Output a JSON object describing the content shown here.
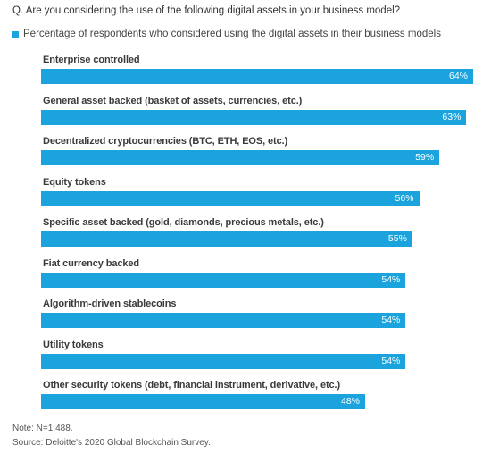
{
  "question": "Q. Are you considering the use of the following digital assets in your business model?",
  "legend": {
    "label": "Percentage of respondents who considered using the digital assets in their business models",
    "color": "#1aa3dc"
  },
  "chart_data": {
    "type": "bar",
    "orientation": "horizontal",
    "bar_color": "#1aa3dc",
    "xlim": [
      0,
      64
    ],
    "categories": [
      "Enterprise controlled",
      "General asset backed (basket of assets, currencies, etc.)",
      "Decentralized cryptocurrencies (BTC, ETH, EOS, etc.)",
      "Equity tokens",
      "Specific asset backed (gold, diamonds, precious metals, etc.)",
      "Fiat currency backed",
      "Algorithm-driven stablecoins",
      "Utility tokens",
      "Other security tokens (debt, financial instrument, derivative, etc.)"
    ],
    "values": [
      64,
      63,
      59,
      56,
      55,
      54,
      54,
      54,
      48
    ],
    "value_labels": [
      "64%",
      "63%",
      "59%",
      "56%",
      "55%",
      "54%",
      "54%",
      "54%",
      "48%"
    ]
  },
  "notes": {
    "note": "Note: N=1,488.",
    "source": "Source: Deloitte's 2020 Global Blockchain Survey."
  }
}
